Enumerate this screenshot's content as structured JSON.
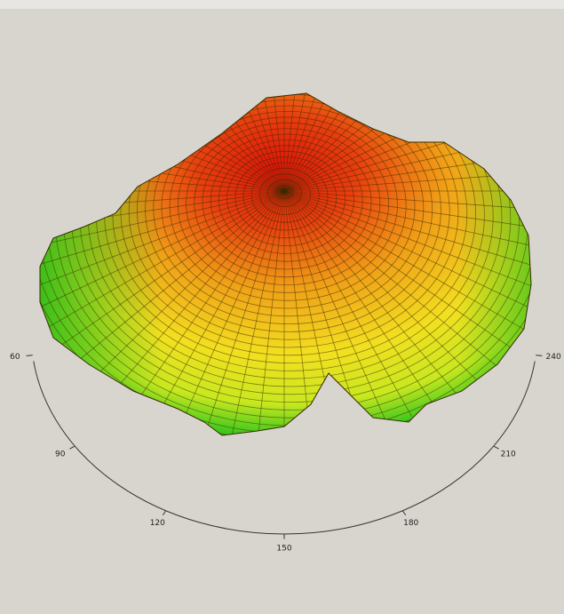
{
  "chart_data": {
    "type": "surface3d",
    "angle_ticks": [
      60,
      90,
      120,
      150,
      180,
      210,
      240
    ]
  }
}
